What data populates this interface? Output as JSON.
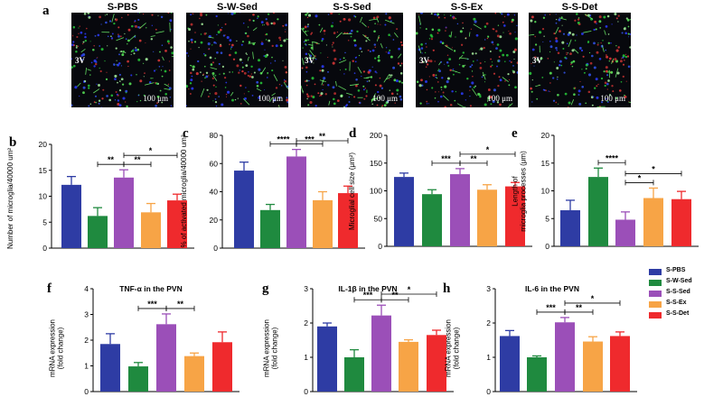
{
  "panel_letters": [
    "a",
    "b",
    "c",
    "d",
    "e",
    "f",
    "g",
    "h"
  ],
  "microscopy": {
    "groups": [
      "S-PBS",
      "S-W-Sed",
      "S-S-Sed",
      "S-S-Ex",
      "S-S-Det"
    ],
    "scale_bar_text": "100 μm",
    "ventricle_label": "3V"
  },
  "legend": [
    {
      "label": "S-PBS",
      "color": "#2e3ca4"
    },
    {
      "label": "S-W-Sed",
      "color": "#1f8a3f"
    },
    {
      "label": "S-S-Sed",
      "color": "#9b4fb8"
    },
    {
      "label": "S-S-Ex",
      "color": "#f7a446"
    },
    {
      "label": "S-S-Det",
      "color": "#ef2a2d"
    }
  ],
  "chart_data": [
    {
      "panel": "b",
      "type": "bar",
      "title": "",
      "ylabel": "Number of microglia/40000 um²",
      "categories": [
        "S-PBS",
        "S-W-Sed",
        "S-S-Sed",
        "S-S-Ex",
        "S-S-Det"
      ],
      "values": [
        12.2,
        6.2,
        13.6,
        6.9,
        9.2
      ],
      "errors": [
        1.6,
        1.6,
        1.5,
        1.7,
        1.2
      ],
      "ylim": [
        0,
        20
      ],
      "yticks": [
        0,
        5,
        10,
        15,
        20
      ],
      "significance": [
        {
          "a": 1,
          "b": 2,
          "label": "**"
        },
        {
          "a": 2,
          "b": 3,
          "label": "**"
        },
        {
          "a": 2,
          "b": 4,
          "label": "*"
        }
      ]
    },
    {
      "panel": "c",
      "type": "bar",
      "title": "",
      "ylabel": "% of activated microglia/40000 um²",
      "categories": [
        "S-PBS",
        "S-W-Sed",
        "S-S-Sed",
        "S-S-Ex",
        "S-S-Det"
      ],
      "values": [
        55,
        27,
        65,
        34,
        39
      ],
      "errors": [
        6,
        4,
        5,
        6,
        5
      ],
      "ylim": [
        0,
        80
      ],
      "yticks": [
        0,
        20,
        40,
        60,
        80
      ],
      "significance": [
        {
          "a": 1,
          "b": 2,
          "label": "****"
        },
        {
          "a": 2,
          "b": 3,
          "label": "***"
        },
        {
          "a": 2,
          "b": 4,
          "label": "**"
        }
      ]
    },
    {
      "panel": "d",
      "type": "bar",
      "title": "",
      "ylabel": "Microglial cell size (μm²)",
      "categories": [
        "S-PBS",
        "S-W-Sed",
        "S-S-Sed",
        "S-S-Ex",
        "S-S-Det"
      ],
      "values": [
        125,
        94,
        130,
        102,
        108
      ],
      "errors": [
        7,
        8,
        10,
        9,
        7
      ],
      "ylim": [
        0,
        200
      ],
      "yticks": [
        0,
        50,
        100,
        150,
        200
      ],
      "significance": [
        {
          "a": 1,
          "b": 2,
          "label": "***"
        },
        {
          "a": 2,
          "b": 3,
          "label": "**"
        },
        {
          "a": 2,
          "b": 4,
          "label": "*"
        }
      ]
    },
    {
      "panel": "e",
      "type": "bar",
      "title": "",
      "ylabel": "Length of microglia processes (μm)",
      "categories": [
        "S-PBS",
        "S-W-Sed",
        "S-S-Sed",
        "S-S-Ex",
        "S-S-Det"
      ],
      "values": [
        6.5,
        12.5,
        4.8,
        8.7,
        8.5
      ],
      "errors": [
        1.8,
        1.6,
        1.4,
        1.8,
        1.4
      ],
      "ylim": [
        0,
        20
      ],
      "yticks": [
        0,
        5,
        10,
        15,
        20
      ],
      "significance": [
        {
          "a": 1,
          "b": 2,
          "label": "****"
        },
        {
          "a": 2,
          "b": 3,
          "label": "*"
        },
        {
          "a": 2,
          "b": 4,
          "label": "*"
        }
      ]
    },
    {
      "panel": "f",
      "type": "bar",
      "title": "TNF-α in the PVN",
      "ylabel": "mRNA expression (fold change)",
      "categories": [
        "S-PBS",
        "S-W-Sed",
        "S-S-Sed",
        "S-S-Ex",
        "S-S-Det"
      ],
      "values": [
        1.85,
        0.98,
        2.62,
        1.38,
        1.92
      ],
      "errors": [
        0.4,
        0.15,
        0.4,
        0.12,
        0.4
      ],
      "ylim": [
        0,
        4
      ],
      "yticks": [
        0,
        1,
        2,
        3,
        4
      ],
      "significance": [
        {
          "a": 1,
          "b": 2,
          "label": "***"
        },
        {
          "a": 2,
          "b": 3,
          "label": "**"
        }
      ]
    },
    {
      "panel": "g",
      "type": "bar",
      "title": "IL-1β in the PVN",
      "ylabel": "mRNA expression (fold change)",
      "categories": [
        "S-PBS",
        "S-W-Sed",
        "S-S-Sed",
        "S-S-Ex",
        "S-S-Det"
      ],
      "values": [
        1.9,
        1.0,
        2.22,
        1.45,
        1.65
      ],
      "errors": [
        0.1,
        0.22,
        0.3,
        0.06,
        0.14
      ],
      "ylim": [
        0,
        3
      ],
      "yticks": [
        0,
        1,
        2,
        3
      ],
      "significance": [
        {
          "a": 1,
          "b": 2,
          "label": "***"
        },
        {
          "a": 2,
          "b": 3,
          "label": "**"
        },
        {
          "a": 2,
          "b": 4,
          "label": "*"
        }
      ]
    },
    {
      "panel": "h",
      "type": "bar",
      "title": "IL-6 in the PVN",
      "ylabel": "mRNA expression (fold change)",
      "categories": [
        "S-PBS",
        "S-W-Sed",
        "S-S-Sed",
        "S-S-Ex",
        "S-S-Det"
      ],
      "values": [
        1.62,
        1.0,
        2.02,
        1.46,
        1.62
      ],
      "errors": [
        0.16,
        0.04,
        0.14,
        0.14,
        0.12
      ],
      "ylim": [
        0,
        3
      ],
      "yticks": [
        0,
        1,
        2,
        3
      ],
      "significance": [
        {
          "a": 1,
          "b": 2,
          "label": "***"
        },
        {
          "a": 2,
          "b": 3,
          "label": "**"
        },
        {
          "a": 2,
          "b": 4,
          "label": "*"
        }
      ]
    }
  ]
}
